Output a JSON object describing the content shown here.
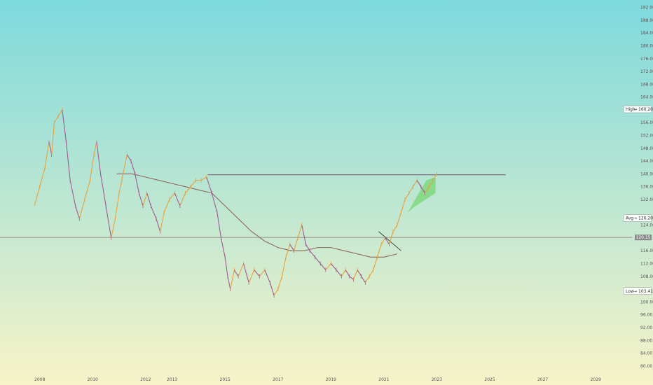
{
  "chart_data": {
    "type": "candlestick",
    "xlabel": "",
    "ylabel": "",
    "xlim": [
      2006.5,
      2030.0
    ],
    "ylim": [
      78,
      193
    ],
    "x_ticks": [
      {
        "value": 2008,
        "label": "2008"
      },
      {
        "value": 2010,
        "label": "2010"
      },
      {
        "value": 2012,
        "label": "2012"
      },
      {
        "value": 2013,
        "label": "2013"
      },
      {
        "value": 2015,
        "label": "2015"
      },
      {
        "value": 2017,
        "label": "2017"
      },
      {
        "value": 2019,
        "label": "2019"
      },
      {
        "value": 2021,
        "label": "2021"
      },
      {
        "value": 2023,
        "label": "2023"
      },
      {
        "value": 2025,
        "label": "2025"
      },
      {
        "value": 2027,
        "label": "2027"
      },
      {
        "value": 2029,
        "label": "2029"
      }
    ],
    "y_ticks": [
      {
        "value": 192,
        "label": "192.00"
      },
      {
        "value": 188,
        "label": "188.00"
      },
      {
        "value": 184,
        "label": "184.00"
      },
      {
        "value": 180,
        "label": "180.00"
      },
      {
        "value": 176,
        "label": "176.00"
      },
      {
        "value": 172,
        "label": "172.00"
      },
      {
        "value": 168,
        "label": "168.00"
      },
      {
        "value": 164,
        "label": "164.00"
      },
      {
        "value": 156,
        "label": "156.00"
      },
      {
        "value": 152,
        "label": "152.00"
      },
      {
        "value": 148,
        "label": "148.00"
      },
      {
        "value": 144,
        "label": "144.00"
      },
      {
        "value": 140,
        "label": "140.00"
      },
      {
        "value": 136,
        "label": "136.00"
      },
      {
        "value": 132,
        "label": "132.00"
      },
      {
        "value": 124,
        "label": "124.00"
      },
      {
        "value": 116,
        "label": "116.00"
      },
      {
        "value": 112,
        "label": "112.00"
      },
      {
        "value": 108,
        "label": "108.00"
      },
      {
        "value": 100,
        "label": "100.00"
      },
      {
        "value": 96,
        "label": "96.00"
      },
      {
        "value": 92,
        "label": "92.00"
      },
      {
        "value": 88,
        "label": "88.00"
      },
      {
        "value": 84,
        "label": "84.00"
      },
      {
        "value": 80,
        "label": "80.00"
      }
    ],
    "markers": [
      {
        "name": "High",
        "label": "High",
        "value": 160.2,
        "value_label": "160.20"
      },
      {
        "name": "Avg",
        "label": "Avg",
        "value": 126.2,
        "value_label": "126.20"
      },
      {
        "name": "Low",
        "label": "Low",
        "value": 103.41,
        "value_label": "103.41"
      }
    ],
    "current_price": {
      "value": 120.15,
      "label": "120.15"
    },
    "price_path": [
      [
        2007.8,
        130
      ],
      [
        2008.0,
        136
      ],
      [
        2008.2,
        142
      ],
      [
        2008.35,
        150
      ],
      [
        2008.45,
        146
      ],
      [
        2008.55,
        156
      ],
      [
        2008.7,
        158
      ],
      [
        2008.85,
        160
      ],
      [
        2009.0,
        150
      ],
      [
        2009.15,
        138
      ],
      [
        2009.35,
        130
      ],
      [
        2009.5,
        126
      ],
      [
        2009.7,
        132
      ],
      [
        2009.9,
        138
      ],
      [
        2010.05,
        146
      ],
      [
        2010.15,
        150
      ],
      [
        2010.3,
        140
      ],
      [
        2010.5,
        130
      ],
      [
        2010.7,
        120
      ],
      [
        2010.85,
        126
      ],
      [
        2011.0,
        134
      ],
      [
        2011.15,
        140
      ],
      [
        2011.3,
        146
      ],
      [
        2011.45,
        144
      ],
      [
        2011.6,
        140
      ],
      [
        2011.75,
        134
      ],
      [
        2011.9,
        130
      ],
      [
        2012.05,
        134
      ],
      [
        2012.2,
        130
      ],
      [
        2012.4,
        126
      ],
      [
        2012.55,
        122
      ],
      [
        2012.7,
        128
      ],
      [
        2012.9,
        132
      ],
      [
        2013.1,
        134
      ],
      [
        2013.3,
        130
      ],
      [
        2013.5,
        134
      ],
      [
        2013.7,
        136
      ],
      [
        2013.9,
        138
      ],
      [
        2014.1,
        138
      ],
      [
        2014.3,
        139
      ],
      [
        2014.5,
        134
      ],
      [
        2014.7,
        128
      ],
      [
        2014.85,
        120
      ],
      [
        2015.0,
        114
      ],
      [
        2015.1,
        108
      ],
      [
        2015.2,
        104
      ],
      [
        2015.35,
        110
      ],
      [
        2015.5,
        108
      ],
      [
        2015.7,
        112
      ],
      [
        2015.9,
        106
      ],
      [
        2016.1,
        110
      ],
      [
        2016.3,
        108
      ],
      [
        2016.5,
        110
      ],
      [
        2016.7,
        106
      ],
      [
        2016.85,
        102
      ],
      [
        2017.0,
        104
      ],
      [
        2017.15,
        108
      ],
      [
        2017.3,
        114
      ],
      [
        2017.45,
        118
      ],
      [
        2017.6,
        116
      ],
      [
        2017.75,
        120
      ],
      [
        2017.9,
        124
      ],
      [
        2018.05,
        118
      ],
      [
        2018.2,
        116
      ],
      [
        2018.4,
        114
      ],
      [
        2018.6,
        112
      ],
      [
        2018.8,
        110
      ],
      [
        2019.0,
        112
      ],
      [
        2019.2,
        110
      ],
      [
        2019.4,
        108
      ],
      [
        2019.55,
        110
      ],
      [
        2019.7,
        108
      ],
      [
        2019.85,
        107
      ],
      [
        2020.0,
        110
      ],
      [
        2020.15,
        108
      ],
      [
        2020.3,
        106
      ],
      [
        2020.45,
        108
      ],
      [
        2020.6,
        110
      ],
      [
        2020.75,
        114
      ],
      [
        2020.9,
        118
      ],
      [
        2021.05,
        120
      ],
      [
        2021.2,
        118
      ],
      [
        2021.35,
        122
      ],
      [
        2021.5,
        124
      ],
      [
        2021.65,
        128
      ],
      [
        2021.8,
        132
      ],
      [
        2021.95,
        134
      ],
      [
        2022.1,
        136
      ],
      [
        2022.25,
        138
      ],
      [
        2022.4,
        136
      ],
      [
        2022.55,
        134
      ],
      [
        2022.7,
        136
      ],
      [
        2022.85,
        138
      ],
      [
        2023.0,
        140
      ]
    ],
    "moving_average": [
      [
        2010.9,
        140
      ],
      [
        2011.5,
        140
      ],
      [
        2012.0,
        139
      ],
      [
        2012.5,
        138
      ],
      [
        2013.0,
        137
      ],
      [
        2013.5,
        136
      ],
      [
        2014.0,
        135
      ],
      [
        2014.5,
        134
      ],
      [
        2015.0,
        130
      ],
      [
        2015.5,
        126
      ],
      [
        2016.0,
        122
      ],
      [
        2016.5,
        119
      ],
      [
        2017.0,
        117
      ],
      [
        2017.5,
        116
      ],
      [
        2018.0,
        116
      ],
      [
        2018.5,
        117
      ],
      [
        2019.0,
        117
      ],
      [
        2019.5,
        116
      ],
      [
        2020.0,
        115
      ],
      [
        2020.5,
        114
      ],
      [
        2021.0,
        114
      ],
      [
        2021.5,
        115
      ]
    ],
    "resistance_line": {
      "x": [
        2014.35,
        2025.6
      ],
      "y": 139.7
    },
    "wedge_line": {
      "x": [
        2020.8,
        2021.65
      ],
      "y": [
        122,
        116
      ]
    },
    "highlight_zone": {
      "points": [
        [
          2021.9,
          128
        ],
        [
          2022.6,
          138
        ],
        [
          2022.95,
          139
        ],
        [
          2022.95,
          134
        ],
        [
          2022.2,
          130
        ]
      ],
      "color": "#7ed87e"
    },
    "colors": {
      "price_up": "#e8a33c",
      "price_down": "#a05c8e",
      "moving_average": "#8c6a5e",
      "resistance": "#7a4e60",
      "current_price_line": "#9a8a8a",
      "price_tag_bg": "#8a8a8a",
      "background_top": "#7dd9dd",
      "background_bottom": "#f7f3c8"
    }
  }
}
